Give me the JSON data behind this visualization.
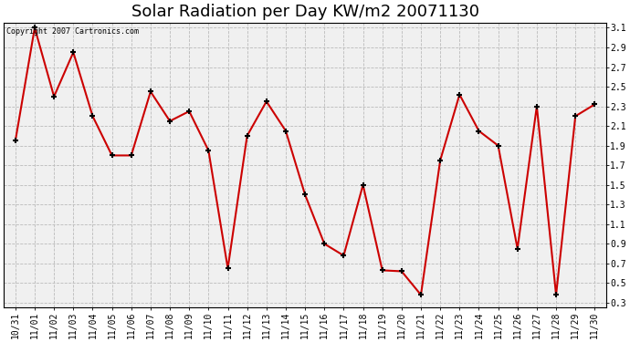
{
  "title": "Solar Radiation per Day KW/m2 20071130",
  "copyright_text": "Copyright 2007 Cartronics.com",
  "dates": [
    "10/31",
    "11/01",
    "11/02",
    "11/03",
    "11/04",
    "11/05",
    "11/06",
    "11/07",
    "11/08",
    "11/09",
    "11/10",
    "11/11",
    "11/12",
    "11/13",
    "11/14",
    "11/15",
    "11/16",
    "11/17",
    "11/18",
    "11/19",
    "11/20",
    "11/21",
    "11/22",
    "11/23",
    "11/24",
    "11/25",
    "11/26",
    "11/27",
    "11/28",
    "11/29",
    "11/30"
  ],
  "values": [
    1.95,
    3.1,
    2.4,
    2.85,
    2.2,
    1.8,
    1.8,
    2.45,
    2.15,
    2.25,
    1.85,
    0.65,
    2.0,
    2.35,
    2.05,
    1.4,
    0.9,
    0.78,
    1.5,
    0.63,
    0.62,
    0.38,
    1.75,
    2.42,
    2.05,
    1.9,
    0.85,
    2.3,
    0.38,
    2.2,
    2.32
  ],
  "line_color": "#cc0000",
  "marker": "+",
  "marker_color": "#000000",
  "marker_size": 5,
  "line_width": 1.5,
  "ylim_min": 0.25,
  "ylim_max": 3.15,
  "yticks": [
    0.3,
    0.5,
    0.7,
    0.9,
    1.1,
    1.3,
    1.5,
    1.7,
    1.9,
    2.1,
    2.3,
    2.5,
    2.7,
    2.9,
    3.1
  ],
  "ytick_labels": [
    "0.3",
    "0.5",
    "0.7",
    "0.9",
    "1.1",
    "1.3",
    "1.5",
    "1.7",
    "1.9",
    "2.1",
    "2.3",
    "2.5",
    "2.7",
    "2.9",
    "3.1"
  ],
  "background_color": "#ffffff",
  "plot_bg_color": "#f0f0f0",
  "grid_color": "#bbbbbb",
  "title_fontsize": 13,
  "tick_fontsize": 7,
  "copyright_fontsize": 6
}
